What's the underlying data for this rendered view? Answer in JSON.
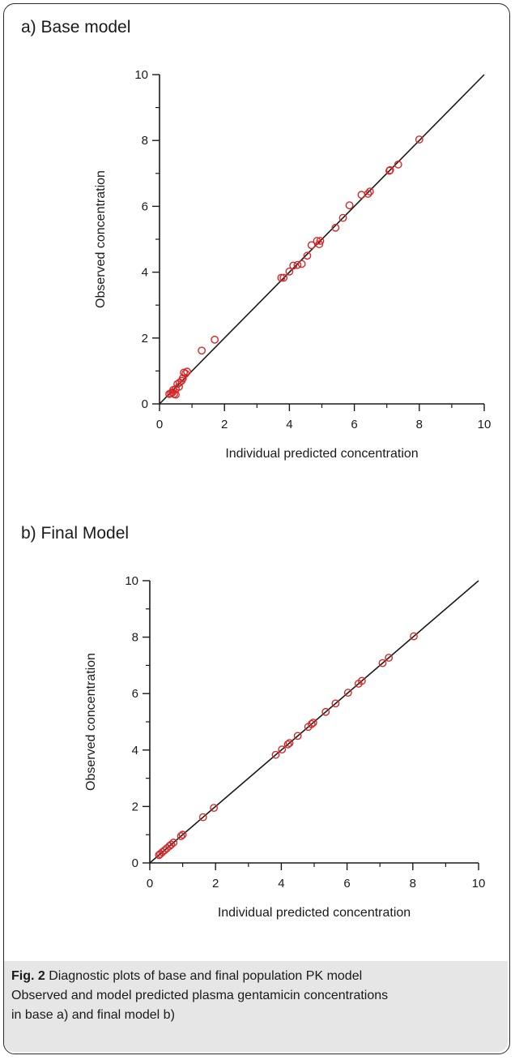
{
  "panels": {
    "a_title": "a) Base model",
    "b_title": "b) Final Model"
  },
  "caption": {
    "label": "Fig. 2",
    "line1": " Diagnostic plots of base and final population PK model",
    "line2": "Observed and model predicted plasma gentamicin concentrations",
    "line3": "in base a) and final model b)"
  },
  "colors": {
    "marker": "#d62728",
    "line": "#1a1a1a",
    "caption_bg": "#e6e6e6"
  },
  "chart_data": [
    {
      "type": "scatter",
      "title": "a) Base model",
      "xlabel": "Individual predicted concentration",
      "ylabel": "Observed concentration",
      "xlim": [
        0,
        10
      ],
      "ylim": [
        0,
        10
      ],
      "xticks": [
        "0",
        "2",
        "4",
        "6",
        "8",
        "10"
      ],
      "yticks": [
        "0",
        "2",
        "4",
        "6",
        "8",
        "10"
      ],
      "reference_line": [
        [
          0,
          0
        ],
        [
          10,
          10
        ]
      ],
      "points": [
        [
          0.3,
          0.3
        ],
        [
          0.35,
          0.32
        ],
        [
          0.4,
          0.35
        ],
        [
          0.45,
          0.3
        ],
        [
          0.5,
          0.28
        ],
        [
          0.42,
          0.42
        ],
        [
          0.5,
          0.45
        ],
        [
          0.55,
          0.6
        ],
        [
          0.6,
          0.52
        ],
        [
          0.62,
          0.65
        ],
        [
          0.68,
          0.7
        ],
        [
          0.72,
          0.78
        ],
        [
          0.75,
          0.95
        ],
        [
          0.8,
          0.92
        ],
        [
          0.85,
          0.98
        ],
        [
          1.3,
          1.62
        ],
        [
          1.7,
          1.95
        ],
        [
          3.75,
          3.83
        ],
        [
          3.82,
          3.83
        ],
        [
          4.0,
          4.02
        ],
        [
          4.12,
          4.2
        ],
        [
          4.25,
          4.22
        ],
        [
          4.38,
          4.25
        ],
        [
          4.55,
          4.5
        ],
        [
          4.68,
          4.82
        ],
        [
          4.85,
          4.95
        ],
        [
          4.92,
          4.85
        ],
        [
          4.95,
          4.95
        ],
        [
          5.42,
          5.35
        ],
        [
          5.65,
          5.65
        ],
        [
          5.85,
          6.03
        ],
        [
          6.22,
          6.35
        ],
        [
          6.42,
          6.38
        ],
        [
          6.48,
          6.45
        ],
        [
          7.08,
          7.08
        ],
        [
          7.1,
          7.1
        ],
        [
          7.35,
          7.27
        ],
        [
          8.0,
          8.03
        ]
      ]
    },
    {
      "type": "scatter",
      "title": "b) Final Model",
      "xlabel": "Individual predicted concentration",
      "ylabel": "Observed concentration",
      "xlim": [
        0,
        10
      ],
      "ylim": [
        0,
        10
      ],
      "xticks": [
        "0",
        "2",
        "4",
        "6",
        "8",
        "10"
      ],
      "yticks": [
        "0",
        "2",
        "4",
        "6",
        "8",
        "10"
      ],
      "reference_line": [
        [
          0,
          0
        ],
        [
          10,
          10
        ]
      ],
      "points": [
        [
          0.28,
          0.28
        ],
        [
          0.32,
          0.32
        ],
        [
          0.38,
          0.38
        ],
        [
          0.45,
          0.45
        ],
        [
          0.52,
          0.52
        ],
        [
          0.6,
          0.6
        ],
        [
          0.65,
          0.65
        ],
        [
          0.72,
          0.72
        ],
        [
          0.95,
          0.95
        ],
        [
          1.0,
          1.0
        ],
        [
          1.62,
          1.62
        ],
        [
          1.95,
          1.95
        ],
        [
          3.83,
          3.83
        ],
        [
          4.02,
          4.02
        ],
        [
          4.2,
          4.2
        ],
        [
          4.25,
          4.25
        ],
        [
          4.5,
          4.5
        ],
        [
          4.82,
          4.82
        ],
        [
          4.92,
          4.92
        ],
        [
          4.97,
          4.97
        ],
        [
          5.35,
          5.35
        ],
        [
          5.65,
          5.65
        ],
        [
          6.03,
          6.03
        ],
        [
          6.35,
          6.35
        ],
        [
          6.45,
          6.45
        ],
        [
          7.08,
          7.08
        ],
        [
          7.27,
          7.27
        ],
        [
          8.03,
          8.03
        ]
      ]
    }
  ]
}
